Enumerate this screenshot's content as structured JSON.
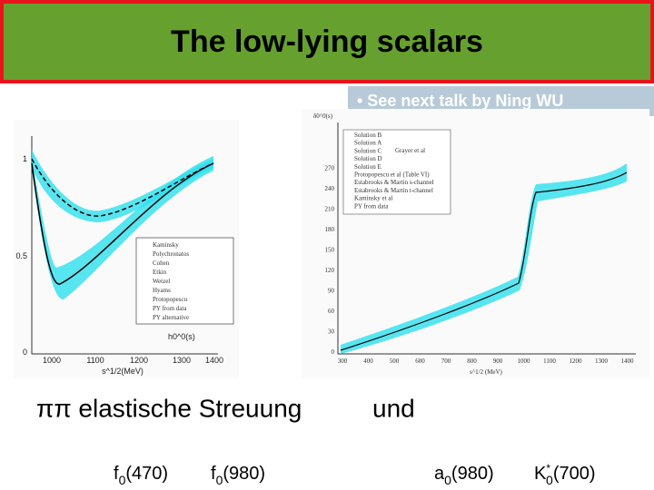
{
  "header": {
    "title": "The low-lying scalars"
  },
  "note": "• See next talk by Ning WU",
  "left_plot": {
    "yticks": [
      "1",
      "0.5",
      "0"
    ],
    "xticks": [
      "1000",
      "1100",
      "1200",
      "1300",
      "1400"
    ],
    "xlabel": "s^1/2(MeV)",
    "legend": [
      "Kaminsky",
      "Polychronatos",
      "Cohen",
      "Etkin",
      "Wetzel",
      "Hyams",
      "Protopopescu",
      "PY from data",
      "PY alternative"
    ],
    "curve_label": "h0^0(s)"
  },
  "right_plot": {
    "ylabel": "δ0^0(s)",
    "yticks": [
      "0",
      "30",
      "60",
      "90",
      "120",
      "150",
      "180",
      "210",
      "240",
      "270"
    ],
    "xticks": [
      "300",
      "400",
      "500",
      "600",
      "700",
      "800",
      "900",
      "1000",
      "1100",
      "1200",
      "1300",
      "1400"
    ],
    "xlabel": "s^1/2 (MeV)",
    "legend": [
      "Solution B",
      "Solution A",
      "Solution C",
      "Solution D",
      "Solution E",
      "Protopopescu et al (Table VI)",
      "Estabrooks & Martin s-channel",
      "Estabrooks & Martin t-channel",
      "Kaminsky et al",
      "PY from data"
    ],
    "legend_extra": "Grayer et al"
  },
  "text": {
    "line1": "ππ elastische Streuung",
    "line2": "und"
  },
  "labels": [
    {
      "base": "f",
      "sub": "0",
      "rest": "(470)"
    },
    {
      "base": "f",
      "sub": "0",
      "rest": "(980)"
    },
    {
      "base": "a",
      "sub": "0",
      "rest": "(980)"
    },
    {
      "base": "K",
      "sup": "*",
      "sub": "0",
      "rest": "(700)"
    }
  ]
}
